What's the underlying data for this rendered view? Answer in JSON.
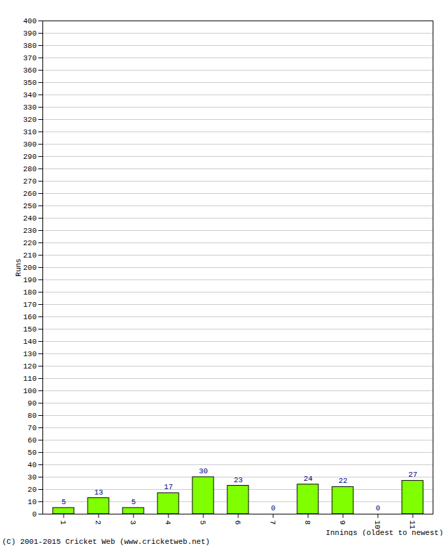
{
  "chart_data": {
    "type": "bar",
    "x_label": "Innings (oldest to newest)",
    "y_label": "Runs",
    "caption": "(C) 2001-2015 Cricket Web (www.cricketweb.net)",
    "categories": [
      "1",
      "2",
      "3",
      "4",
      "5",
      "6",
      "7",
      "8",
      "9",
      "10",
      "11"
    ],
    "values": [
      5,
      13,
      5,
      17,
      30,
      23,
      0,
      24,
      22,
      0,
      27
    ],
    "color": "#80ff00",
    "ylim": [
      0,
      400
    ],
    "yticks": [
      0,
      10,
      20,
      30,
      40,
      50,
      60,
      70,
      80,
      90,
      100,
      110,
      120,
      130,
      140,
      150,
      160,
      170,
      180,
      190,
      200,
      210,
      220,
      230,
      240,
      250,
      260,
      270,
      280,
      290,
      300,
      310,
      320,
      330,
      340,
      350,
      360,
      370,
      380,
      390,
      400
    ],
    "grid": true,
    "data_labels": true
  }
}
